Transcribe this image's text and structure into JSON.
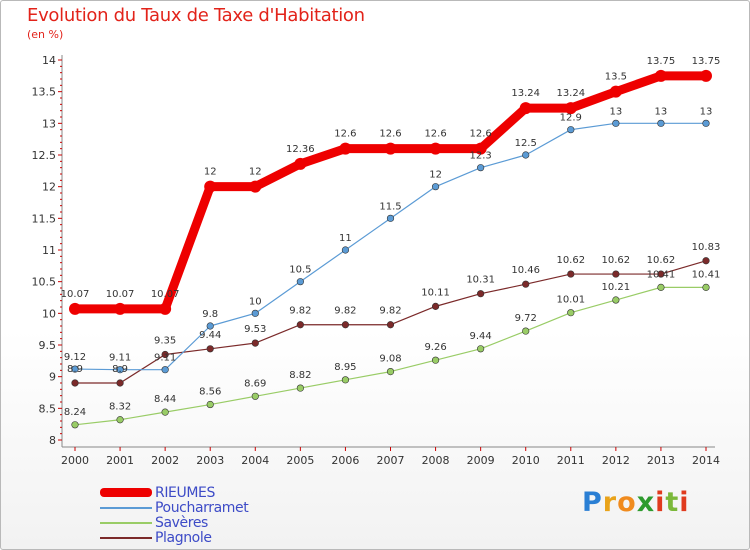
{
  "header": {
    "title": "Evolution du Taux de Taxe d'Habitation",
    "subtitle": "(en %)"
  },
  "chart_data": {
    "type": "line",
    "title": "Evolution du Taux de Taxe d'Habitation",
    "ylabel": "(en %)",
    "xlabel": "",
    "x": [
      "2000",
      "2001",
      "2002",
      "2003",
      "2004",
      "2005",
      "2006",
      "2007",
      "2008",
      "2009",
      "2010",
      "2011",
      "2012",
      "2013",
      "2014"
    ],
    "ylim": [
      8,
      14
    ],
    "yticks": [
      "8",
      "8.5",
      "9",
      "9.5",
      "10",
      "10.5",
      "11",
      "11.5",
      "12",
      "12.5",
      "13",
      "13.5",
      "14"
    ],
    "grid": false,
    "legend_position": "bottom-left",
    "series": [
      {
        "name": "RIEUMES",
        "color": "#ee0000",
        "values": [
          10.07,
          10.07,
          10.07,
          12,
          12,
          12.36,
          12.6,
          12.6,
          12.6,
          12.6,
          13.24,
          13.24,
          13.5,
          13.75,
          13.75
        ],
        "labels": [
          "10.07",
          "10.07",
          "10.07",
          "12",
          "12",
          "12.36",
          "12.6",
          "12.6",
          "12.6",
          "12.6",
          "13.24",
          "13.24",
          "13.5",
          "13.75",
          "13.75"
        ]
      },
      {
        "name": "Poucharramet",
        "color": "#5b9bd5",
        "values": [
          9.12,
          9.11,
          9.11,
          9.8,
          10,
          10.5,
          11,
          11.5,
          12,
          12.3,
          12.5,
          12.9,
          13,
          13,
          13
        ],
        "labels": [
          "9.12",
          "9.11",
          "9.11",
          "9.8",
          "10",
          "10.5",
          "11",
          "11.5",
          "12",
          "12.3",
          "12.5",
          "12.9",
          "13",
          "13",
          "13"
        ]
      },
      {
        "name": "Savères",
        "color": "#99cc66",
        "values": [
          8.24,
          8.32,
          8.44,
          8.56,
          8.69,
          8.82,
          8.95,
          9.08,
          9.26,
          9.44,
          9.72,
          10.01,
          10.21,
          10.41,
          10.41
        ],
        "labels": [
          "8.24",
          "8.32",
          "8.44",
          "8.56",
          "8.69",
          "8.82",
          "8.95",
          "9.08",
          "9.26",
          "9.44",
          "9.72",
          "10.01",
          "10.21",
          "10.41",
          "10.41"
        ]
      },
      {
        "name": "Plagnole",
        "color": "#7b2a2a",
        "values": [
          8.9,
          8.9,
          9.35,
          9.44,
          9.53,
          9.82,
          9.82,
          9.82,
          10.11,
          10.31,
          10.46,
          10.62,
          10.62,
          10.62,
          10.83
        ],
        "labels": [
          "8.9",
          "8.9",
          "9.35",
          "9.44",
          "9.53",
          "9.82",
          "9.82",
          "9.82",
          "10.11",
          "10.31",
          "10.46",
          "10.62",
          "10.62",
          "10.62",
          "10.83"
        ]
      }
    ]
  },
  "legend": {
    "items": [
      {
        "label": "RIEUMES",
        "color": "#ee0000"
      },
      {
        "label": "Poucharramet",
        "color": "#5b9bd5"
      },
      {
        "label": "Savères",
        "color": "#99cc66"
      },
      {
        "label": "Plagnole",
        "color": "#7b2a2a"
      }
    ]
  },
  "logo": {
    "letters": [
      "P",
      "r",
      "o",
      "x",
      "i",
      "t",
      "i"
    ],
    "colors": [
      "#2a7fd4",
      "#e9a31a",
      "#f08b1e",
      "#2e9b2e",
      "#e03a1e",
      "#7bb83a",
      "#e03a1e"
    ]
  }
}
